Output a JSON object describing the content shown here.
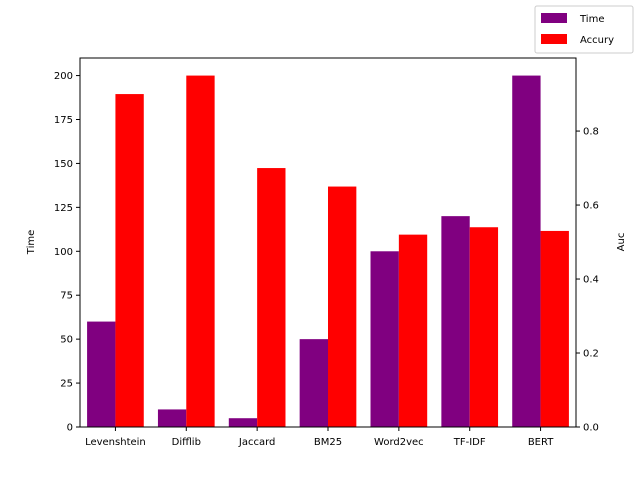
{
  "chart_data": {
    "type": "bar",
    "categories": [
      "Levenshtein",
      "Difflib",
      "Jaccard",
      "BM25",
      "Word2vec",
      "TF-IDF",
      "BERT"
    ],
    "series": [
      {
        "name": "Time",
        "axis": "left",
        "color": "#800080",
        "values": [
          60,
          10,
          5,
          50,
          100,
          120,
          200
        ]
      },
      {
        "name": "Accury",
        "axis": "right",
        "color": "#ff0000",
        "values": [
          0.9,
          0.95,
          0.7,
          0.65,
          0.52,
          0.54,
          0.53
        ]
      }
    ],
    "ylabel": "Time",
    "ylabel_right": "Auc",
    "ylim": [
      0,
      210
    ],
    "ylim_right": [
      0,
      0.9975
    ],
    "yticks": [
      0,
      25,
      50,
      75,
      100,
      125,
      150,
      175,
      200
    ],
    "yticks_right": [
      "0.0",
      "0.2",
      "0.4",
      "0.6",
      "0.8"
    ],
    "legend_position": "top-right",
    "grid": false
  }
}
